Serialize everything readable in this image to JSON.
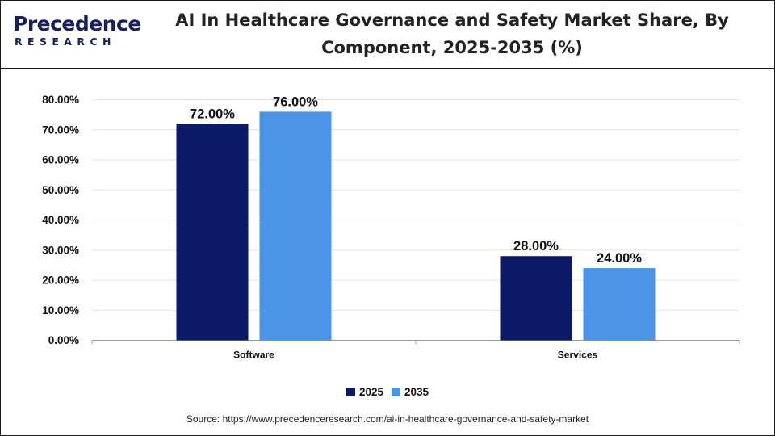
{
  "header": {
    "logo_main": "Precedence",
    "logo_sub": "RESEARCH",
    "title": "AI In Healthcare Governance and Safety Market Share, By Component, 2025-2035 (%)"
  },
  "colors": {
    "series_2025": "#0b1a66",
    "series_2035": "#4b94e6"
  },
  "chart_data": {
    "type": "bar",
    "categories": [
      "Software",
      "Services"
    ],
    "series": [
      {
        "name": "2025",
        "values": [
          72.0,
          28.0
        ],
        "labels": [
          "72.00%",
          "28.00%"
        ]
      },
      {
        "name": "2035",
        "values": [
          76.0,
          24.0
        ],
        "labels": [
          "76.00%",
          "24.00%"
        ]
      }
    ],
    "ylim": [
      0,
      80
    ],
    "yticks": [
      0,
      10,
      20,
      30,
      40,
      50,
      60,
      70,
      80
    ],
    "ytick_labels": [
      "0.00%",
      "10.00%",
      "20.00%",
      "30.00%",
      "40.00%",
      "50.00%",
      "60.00%",
      "70.00%",
      "80.00%"
    ],
    "grid": true,
    "legend": "bottom-center",
    "title": "AI In Healthcare Governance and Safety Market Share, By Component, 2025-2035 (%)",
    "xlabel": "",
    "ylabel": ""
  },
  "legend": {
    "label_2025": "2025",
    "label_2035": "2035"
  },
  "source": "Source: https://www.precedenceresearch.com/ai-in-healthcare-governance-and-safety-market"
}
